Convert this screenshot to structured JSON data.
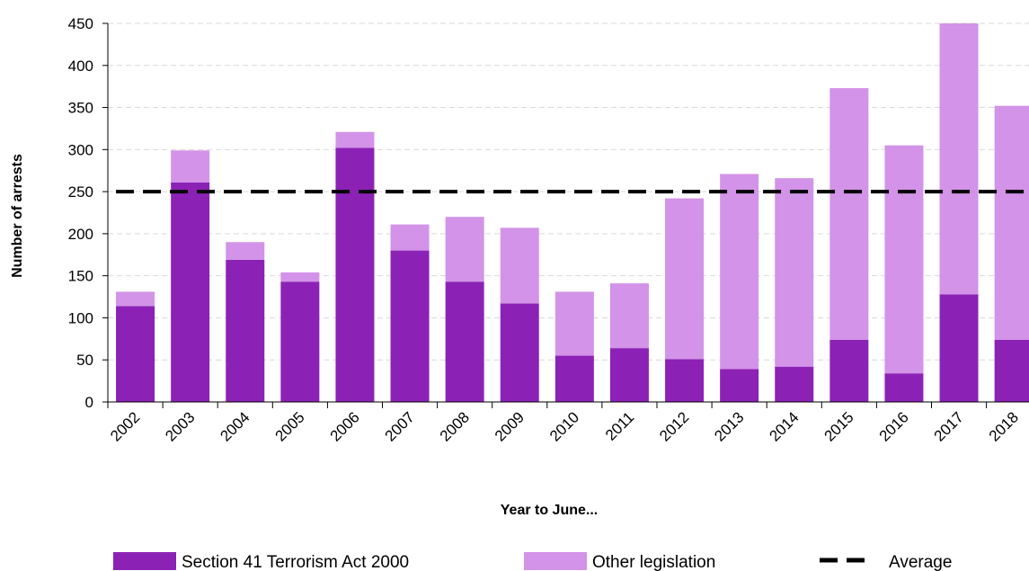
{
  "chart_data": {
    "type": "bar",
    "stacked": true,
    "categories": [
      "2002",
      "2003",
      "2004",
      "2005",
      "2006",
      "2007",
      "2008",
      "2009",
      "2010",
      "2011",
      "2012",
      "2013",
      "2014",
      "2015",
      "2016",
      "2017",
      "2018"
    ],
    "series": [
      {
        "name": "Section 41 Terrorism Act 2000",
        "color": "#8c22b5",
        "values": [
          114,
          261,
          169,
          143,
          302,
          180,
          143,
          117,
          55,
          64,
          51,
          39,
          42,
          74,
          34,
          128,
          74
        ]
      },
      {
        "name": "Other legislation",
        "color": "#d393e8",
        "values": [
          17,
          38,
          21,
          11,
          19,
          31,
          77,
          90,
          76,
          77,
          191,
          232,
          224,
          299,
          271,
          322,
          278
        ]
      }
    ],
    "average": {
      "name": "Average",
      "value": 250
    },
    "xlabel": "Year to June...",
    "ylabel": "Number of arrests",
    "ylim": [
      0,
      450
    ],
    "yticks": [
      0,
      50,
      100,
      150,
      200,
      250,
      300,
      350,
      400,
      450
    ],
    "grid": true,
    "legend_position": "bottom"
  }
}
